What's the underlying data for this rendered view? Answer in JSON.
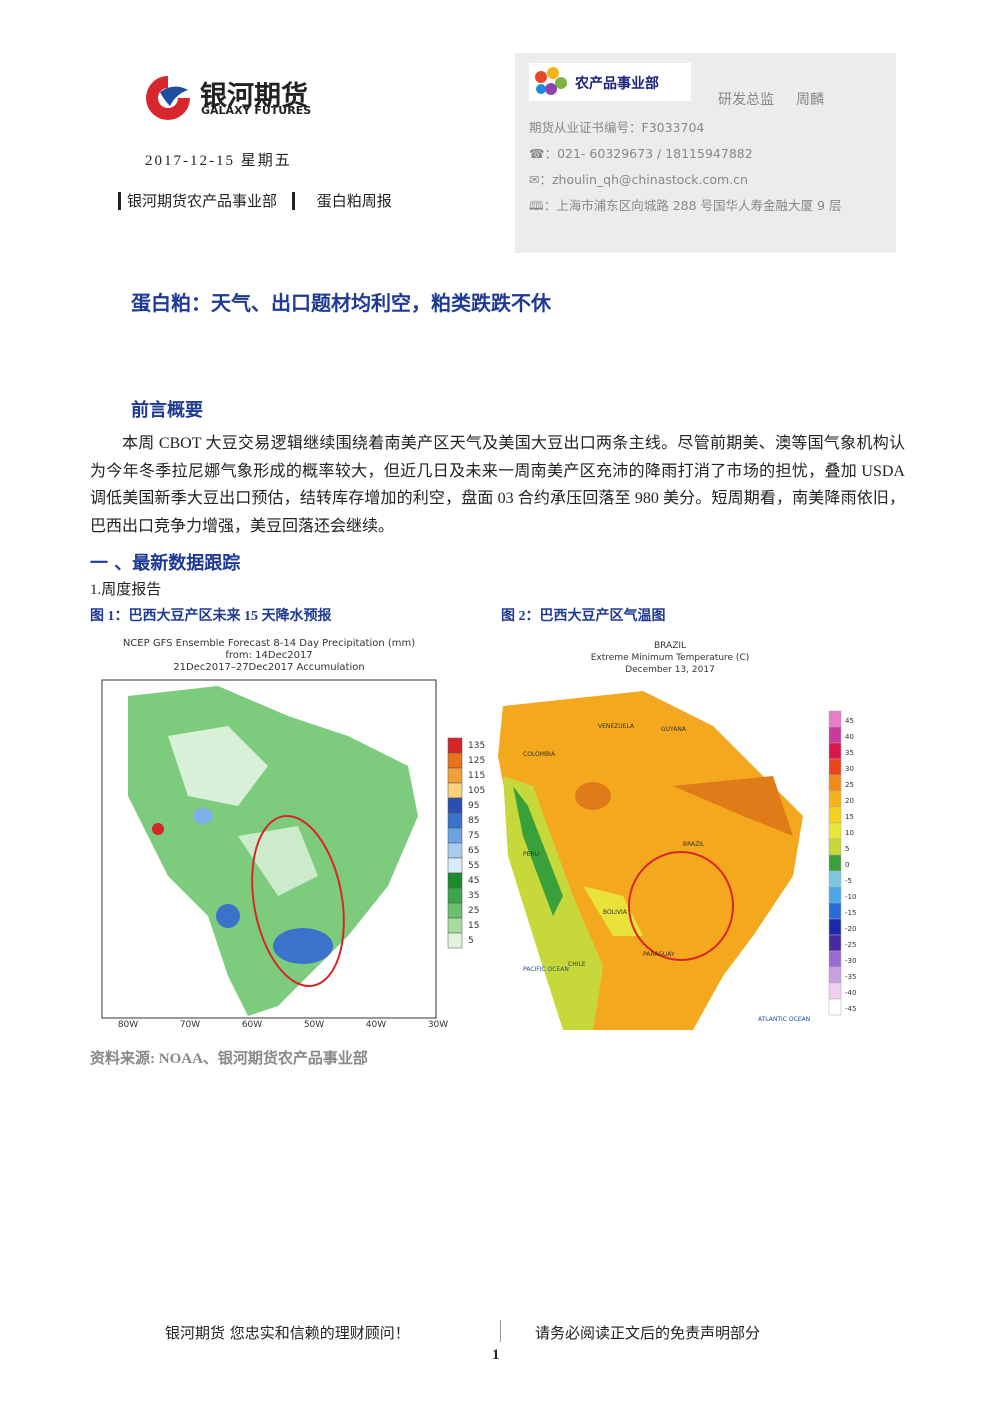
{
  "header": {
    "brand_cn": "银河期货",
    "brand_en": "GALAXY FUTURES",
    "date": "2017-12-15 星期五",
    "department": "银河期货农产品事业部",
    "report": "蛋白粕周报"
  },
  "contact": {
    "dept_logo": "农产品事业部",
    "role": "研发总监",
    "name": "周麟",
    "cert": "期货从业证书编号：F3033704",
    "phone": "：021- 60329673 / 18115947882",
    "email": "：zhoulin_qh@chinastock.com.cn",
    "address": "：上海市浦东区向城路 288 号国华人寿金融大厦 9 层"
  },
  "title": "蛋白粕：天气、出口题材均利空，粕类跌跌不休",
  "summary": {
    "heading": "前言概要",
    "text": "本周 CBOT 大豆交易逻辑继续围绕着南美产区天气及美国大豆出口两条主线。尽管前期美、澳等国气象机构认为今年冬季拉尼娜气象形成的概率较大，但近几日及未来一周南美产区充沛的降雨打消了市场的担忧，叠加 USDA 调低美国新季大豆出口预估，结转库存增加的利空，盘面 03 合约承压回落至 980 美分。短周期看，南美降雨依旧，巴西出口竞争力增强，美豆回落还会继续。"
  },
  "section": {
    "heading": "一 、最新数据跟踪",
    "subheading": "1.周度报告"
  },
  "figures": [
    {
      "caption": "图 1：巴西大豆产区未来 15 天降水预报",
      "map_title": [
        "NCEP GFS Ensemble Forecast 8-14 Day Precipitation (mm)",
        "from: 14Dec2017",
        "21Dec2017–27Dec2017 Accumulation"
      ],
      "x_labels": [
        "80W",
        "70W",
        "60W",
        "50W",
        "40W",
        "30W"
      ],
      "legend": [
        "135",
        "125",
        "115",
        "105",
        "95",
        "85",
        "75",
        "65",
        "55",
        "45",
        "35",
        "25",
        "15",
        "5"
      ]
    },
    {
      "caption": "图 2：巴西大豆产区气温图",
      "map_title": [
        "BRAZIL",
        "Extreme Minimum Temperature (C)",
        "December 13, 2017"
      ],
      "legend": [
        "45",
        "40",
        "35",
        "30",
        "25",
        "20",
        "15",
        "10",
        "5",
        "0",
        "-5",
        "-10",
        "-15",
        "-20",
        "-25",
        "-30",
        "-35",
        "-40",
        "-45"
      ],
      "places": [
        "COLOMBIA",
        "VENEZUELA",
        "GUYANA",
        "PERU",
        "BOLIVIA",
        "CHILE",
        "PARAGUAY",
        "BRAZIL",
        "PACIFIC OCEAN",
        "ATLANTIC OCEAN"
      ]
    }
  ],
  "source": "资料来源: NOAA、银河期货农产品事业部",
  "footer": {
    "left": "银河期货 您忠实和信赖的理财顾问！",
    "right": "请务必阅读正文后的免责声明部分",
    "page": "1"
  }
}
